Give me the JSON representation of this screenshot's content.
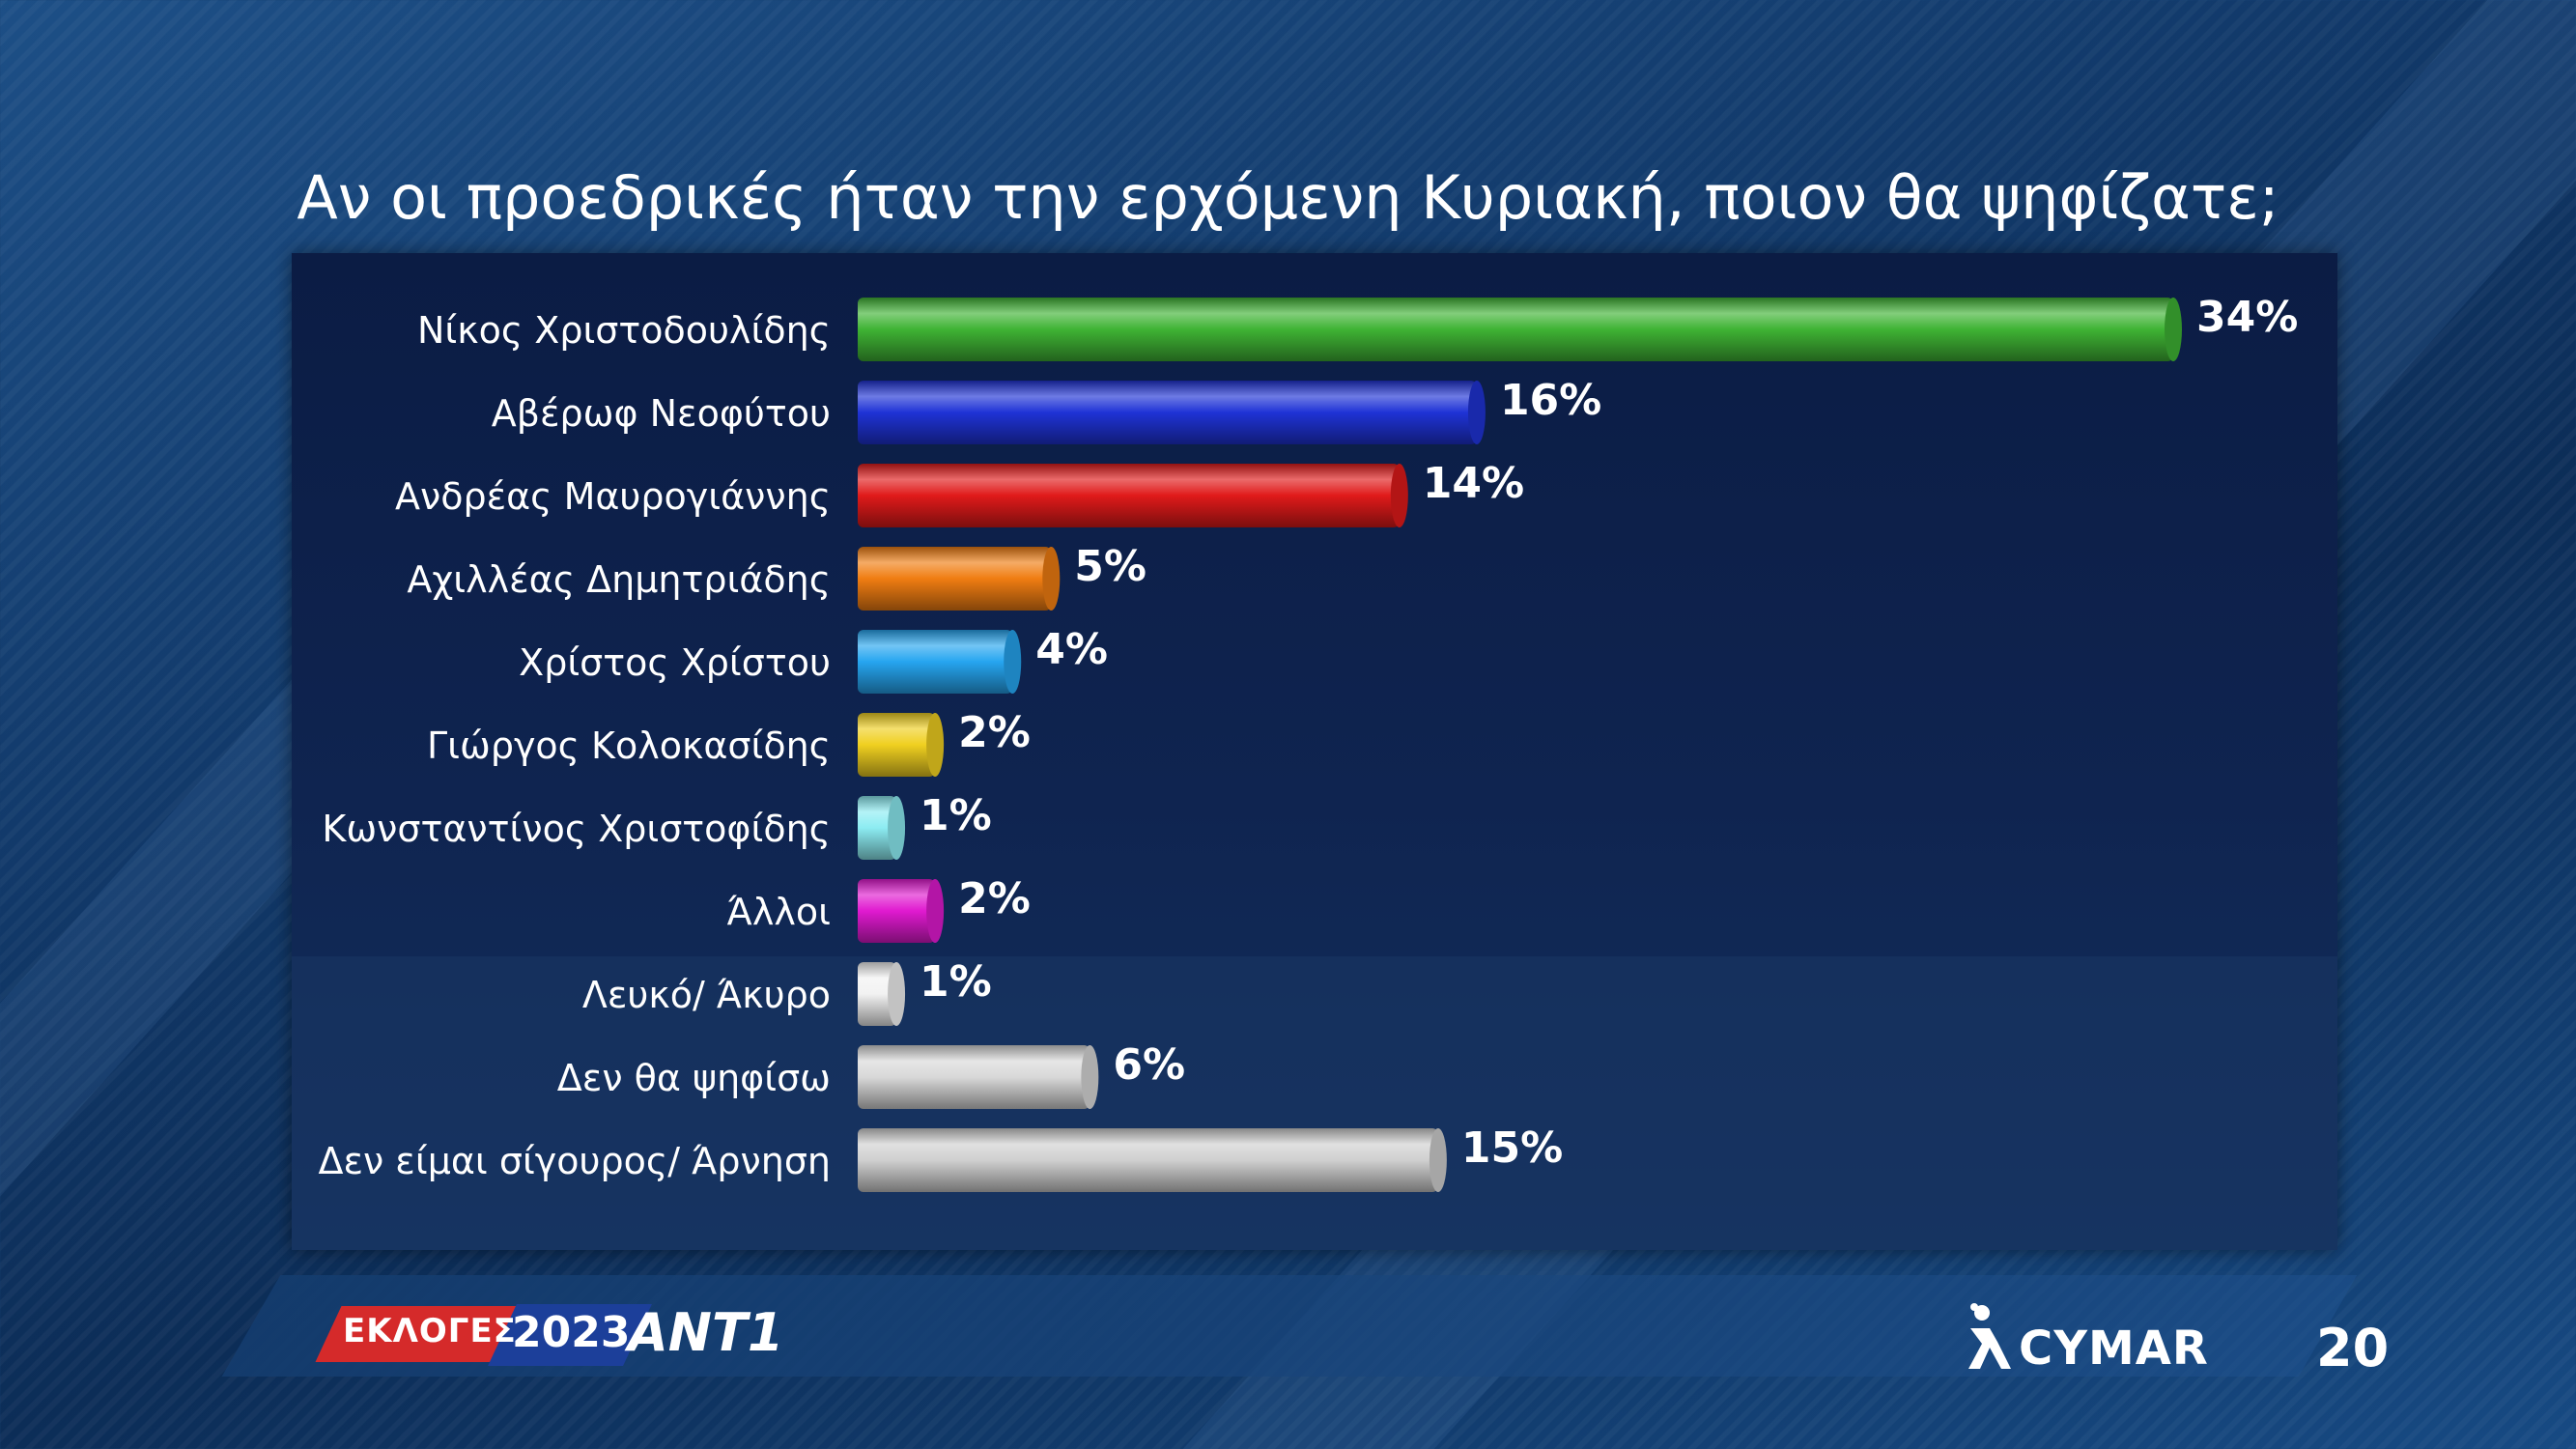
{
  "title": "Αν οι προεδρικές ήταν την ερχόμενη Κυριακή, ποιον θα ψηφίζατε;",
  "chart_data": {
    "type": "bar",
    "orientation": "horizontal",
    "title": "Αν οι προεδρικές ήταν την ερχόμενη Κυριακή, ποιον θα ψηφίζατε;",
    "categories": [
      "Νίκος Χριστοδουλίδης",
      "Αβέρωφ Νεοφύτου",
      "Ανδρέας Μαυρογιάννης",
      "Αχιλλέας Δημητριάδης",
      "Χρίστος Χρίστου",
      "Γιώργος Κολοκασίδης",
      "Κωνσταντίνος Χριστοφίδης",
      "Άλλοι",
      "Λευκό/ Άκυρο",
      "Δεν θα ψηφίσω",
      "Δεν είμαι σίγουρος/ Άρνηση"
    ],
    "values": [
      34,
      16,
      14,
      5,
      4,
      2,
      1,
      2,
      1,
      6,
      15
    ],
    "value_labels": [
      "34%",
      "16%",
      "14%",
      "5%",
      "4%",
      "2%",
      "1%",
      "2%",
      "1%",
      "6%",
      "15%"
    ],
    "colors": [
      "#3fb334",
      "#1f33d6",
      "#e01a1a",
      "#f07d12",
      "#26a5f0",
      "#f0d020",
      "#8cecf2",
      "#e01ad0",
      "#f2f2f2",
      "#d8d8d8",
      "#d0d0d0"
    ],
    "unit": "%",
    "xlim": [
      0,
      34
    ],
    "xlabel": "",
    "ylabel": "",
    "grid": false,
    "legend": "none"
  },
  "footer": {
    "brand_label": "ΕΚΛΟΓΕΣ",
    "year": "2023",
    "channel": "ANT1",
    "pollster": "CYMAR",
    "page_number": "20"
  }
}
